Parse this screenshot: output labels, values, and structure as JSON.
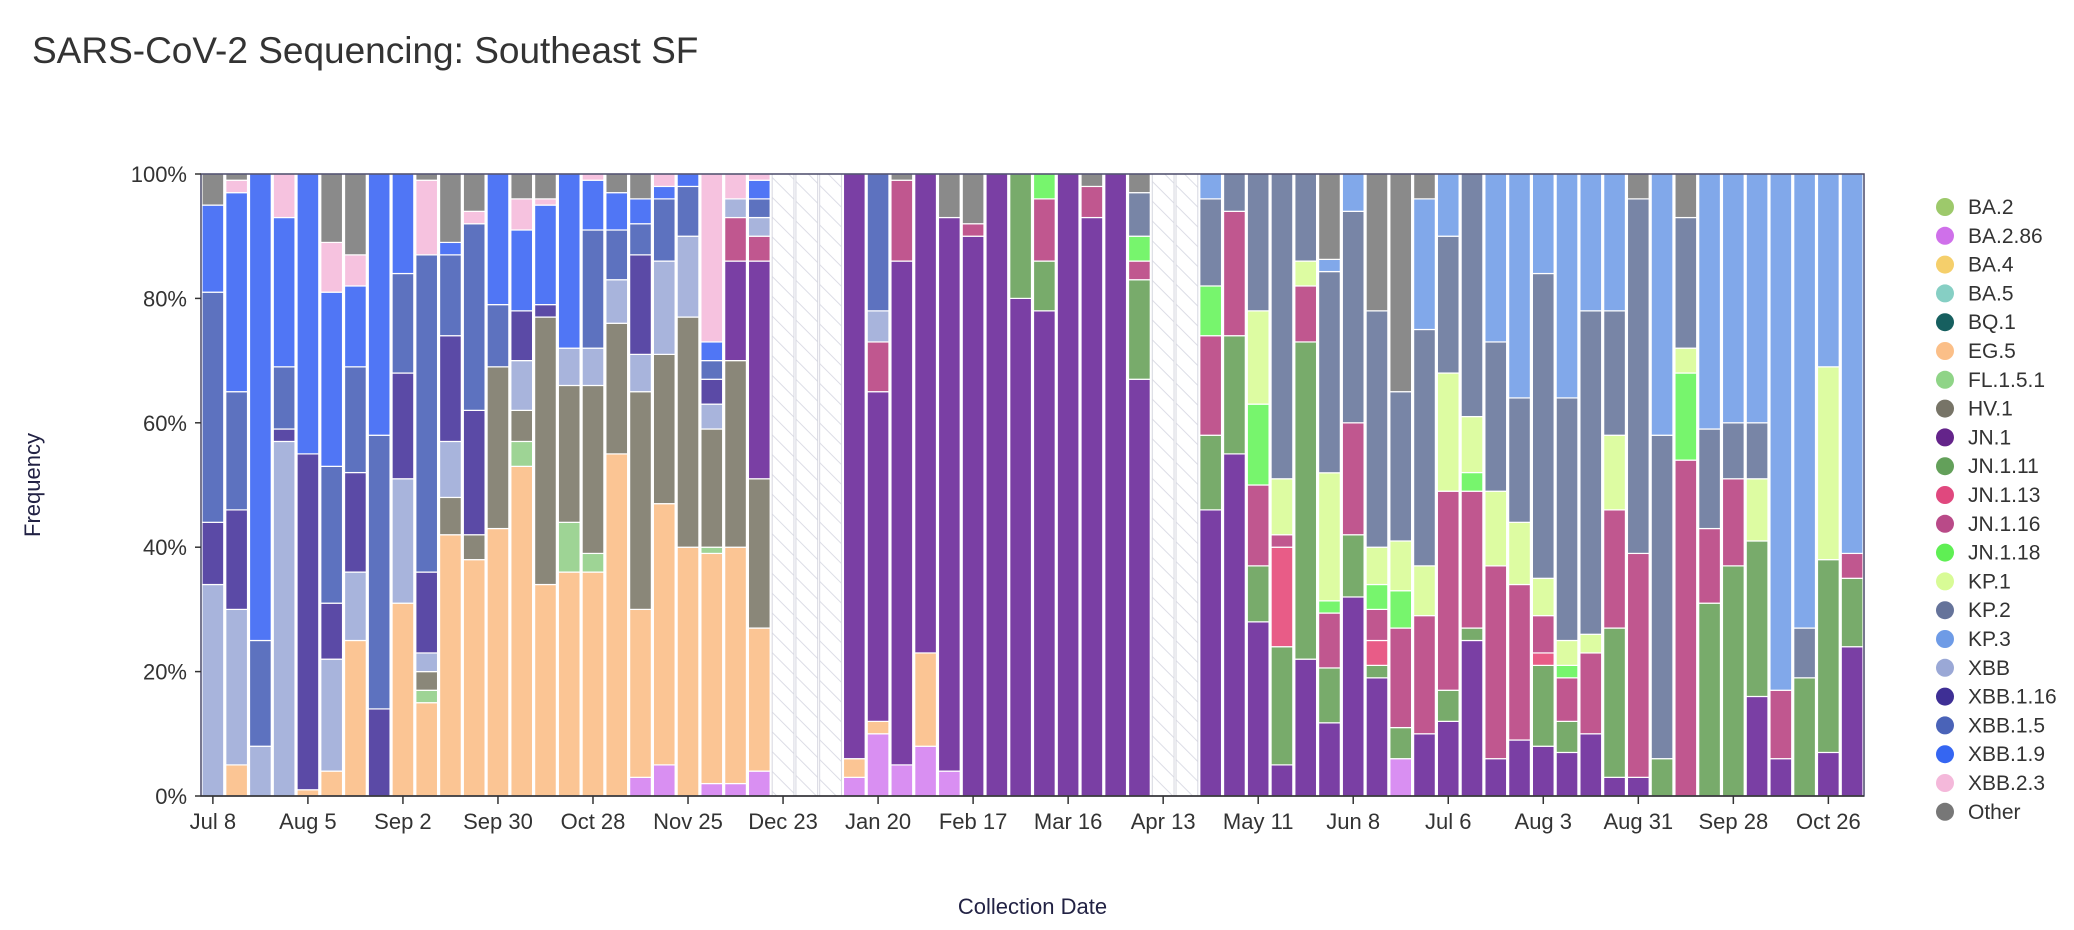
{
  "page": {
    "title": "SARS-CoV-2 Sequencing: Southeast SF"
  },
  "chart_data": {
    "type": "bar",
    "stacked": true,
    "normalized": true,
    "title": "SARS-CoV-2 Sequencing: Southeast SF",
    "xlabel": "Collection Date",
    "ylabel": "Frequency",
    "ylim": [
      0,
      100
    ],
    "yticks": [
      "0%",
      "20%",
      "40%",
      "60%",
      "80%",
      "100%"
    ],
    "xtick_labels": [
      "Jul 8",
      "Aug 5",
      "Sep 2",
      "Sep 30",
      "Oct 28",
      "Nov 25",
      "Dec 23",
      "Jan 20",
      "Feb 17",
      "Mar 16",
      "Apr 13",
      "May 11",
      "Jun 8",
      "Jul 6",
      "Aug 3",
      "Aug 31",
      "Sep 28",
      "Oct 26"
    ],
    "xtick_positions": [
      0,
      4,
      8,
      12,
      16,
      20,
      24,
      28,
      32,
      36,
      40,
      44,
      48,
      52,
      56,
      60,
      64,
      68
    ],
    "num_weeks": 70,
    "no_data_weeks": [
      24,
      25,
      26,
      40,
      41
    ],
    "variants": [
      "BA.2",
      "BA.2.86",
      "BA.4",
      "BA.5",
      "BQ.1",
      "EG.5",
      "FL.1.5.1",
      "HV.1",
      "JN.1",
      "JN.1.11",
      "JN.1.13",
      "JN.1.16",
      "JN.1.18",
      "KP.1",
      "KP.2",
      "KP.3",
      "XBB",
      "XBB.1.16",
      "XBB.1.5",
      "XBB.1.9",
      "XBB.2.3",
      "Other"
    ],
    "colors": {
      "BA.2": "#9dc96b",
      "BA.2.86": "#d98ff2",
      "BA.4": "#f5cf6b",
      "BA.5": "#86cfc4",
      "BQ.1": "#165f5f",
      "EG.5": "#fbc594",
      "FL.1.5.1": "#9ed495",
      "HV.1": "#8a8779",
      "JN.1": "#7a3fa4",
      "JN.1.11": "#78ab6b",
      "JN.1.13": "#e85c87",
      "JN.1.16": "#c0578f",
      "JN.1.18": "#77f56d",
      "KP.1": "#ddfca2",
      "KP.2": "#7885a6",
      "KP.3": "#81a8ea",
      "XBB": "#a8b4dc",
      "XBB.1.16": "#5b4aa6",
      "XBB.1.5": "#5d72bf",
      "XBB.1.9": "#5076f5",
      "XBB.2.3": "#f6c2df",
      "Other": "#8a8a8a"
    },
    "legend_swatch_colors": {
      "BA.2": "#9dc96b",
      "BA.2.86": "#cf70ea",
      "BA.4": "#f5cf6b",
      "BA.5": "#86cfc4",
      "BQ.1": "#165f5f",
      "EG.5": "#fbbf88",
      "FL.1.5.1": "#8fd487",
      "HV.1": "#777467",
      "JN.1": "#64248a",
      "JN.1.11": "#63a05a",
      "JN.1.13": "#e0487e",
      "JN.1.16": "#b94a88",
      "JN.1.18": "#5fef54",
      "KP.1": "#d8fb96",
      "KP.2": "#65739a",
      "KP.3": "#6e9be6",
      "XBB": "#9aa8d6",
      "XBB.1.16": "#3e2f95",
      "XBB.1.5": "#4a63b8",
      "XBB.1.9": "#3566f2",
      "XBB.2.3": "#f4b8da",
      "Other": "#777777"
    },
    "weeks": [
      {
        "XBB": 34,
        "XBB.1.16": 10,
        "XBB.1.5": 37,
        "XBB.1.9": 14,
        "Other": 5
      },
      {
        "EG.5": 5,
        "XBB": 25,
        "XBB.1.16": 16,
        "XBB.1.5": 19,
        "XBB.1.9": 32,
        "XBB.2.3": 2,
        "Other": 1
      },
      {
        "XBB": 8,
        "XBB.1.5": 17,
        "XBB.1.9": 75
      },
      {
        "XBB": 57,
        "XBB.1.16": 2,
        "XBB.1.5": 10,
        "XBB.1.9": 24,
        "XBB.2.3": 7
      },
      {
        "EG.5": 1,
        "XBB.1.16": 54,
        "XBB.1.9": 45
      },
      {
        "EG.5": 4,
        "XBB": 18,
        "XBB.1.16": 9,
        "XBB.1.5": 22,
        "XBB.1.9": 28,
        "XBB.2.3": 8,
        "Other": 11
      },
      {
        "EG.5": 25,
        "XBB": 11,
        "XBB.1.16": 16,
        "XBB.1.5": 17,
        "XBB.1.9": 13,
        "XBB.2.3": 5,
        "Other": 13
      },
      {
        "XBB.1.5": 44,
        "XBB.1.16": 14,
        "XBB.1.9": 42
      },
      {
        "EG.5": 31,
        "XBB": 20,
        "XBB.1.16": 17,
        "XBB.1.5": 16,
        "XBB.1.9": 16
      },
      {
        "EG.5": 15,
        "FL.1.5.1": 2,
        "HV.1": 3,
        "XBB": 3,
        "XBB.1.16": 13,
        "XBB.1.5": 51,
        "XBB.2.3": 12,
        "Other": 1
      },
      {
        "EG.5": 42,
        "HV.1": 6,
        "XBB": 9,
        "XBB.1.16": 17,
        "XBB.1.5": 13,
        "XBB.1.9": 2,
        "Other": 11
      },
      {
        "EG.5": 38,
        "HV.1": 4,
        "XBB.1.16": 20,
        "XBB.1.5": 30,
        "XBB.2.3": 2,
        "Other": 6
      },
      {
        "EG.5": 43,
        "HV.1": 26,
        "XBB.1.5": 10,
        "XBB.1.9": 21
      },
      {
        "EG.5": 53,
        "FL.1.5.1": 4,
        "HV.1": 5,
        "XBB": 8,
        "XBB.1.16": 8,
        "XBB.1.9": 13,
        "XBB.2.3": 5,
        "Other": 4
      },
      {
        "EG.5": 34,
        "HV.1": 43,
        "XBB.1.16": 2,
        "XBB.1.9": 16,
        "XBB.2.3": 1,
        "Other": 4
      },
      {
        "EG.5": 36,
        "FL.1.5.1": 8,
        "HV.1": 22,
        "XBB": 6,
        "XBB.1.9": 28
      },
      {
        "EG.5": 36,
        "FL.1.5.1": 3,
        "HV.1": 27,
        "XBB": 6,
        "XBB.1.5": 19,
        "XBB.1.9": 8,
        "XBB.2.3": 1
      },
      {
        "EG.5": 55,
        "HV.1": 21,
        "XBB": 7,
        "XBB.1.5": 8,
        "XBB.1.9": 6,
        "Other": 3
      },
      {
        "BA.2.86": 3,
        "EG.5": 27,
        "HV.1": 35,
        "XBB.1.16": 16,
        "XBB": 6,
        "XBB.1.5": 5,
        "XBB.1.9": 4,
        "Other": 4
      },
      {
        "BA.2.86": 5,
        "EG.5": 42,
        "HV.1": 24,
        "XBB": 15,
        "XBB.1.5": 10,
        "XBB.1.9": 2,
        "XBB.2.3": 2
      },
      {
        "EG.5": 40,
        "HV.1": 37,
        "XBB": 13,
        "XBB.1.5": 8,
        "XBB.1.9": 2
      },
      {
        "BA.2.86": 2,
        "EG.5": 37,
        "FL.1.5.1": 1,
        "HV.1": 19,
        "XBB.1.16": 4,
        "XBB": 4,
        "XBB.1.5": 3,
        "XBB.1.9": 3,
        "XBB.2.3": 27
      },
      {
        "BA.2.86": 2,
        "EG.5": 38,
        "HV.1": 30,
        "JN.1": 16,
        "JN.1.16": 7,
        "XBB": 3,
        "XBB.2.3": 4
      },
      {
        "BA.2.86": 4,
        "EG.5": 23,
        "HV.1": 24,
        "JN.1": 35,
        "JN.1.16": 4,
        "XBB": 3,
        "XBB.1.5": 3,
        "XBB.1.9": 3,
        "XBB.2.3": 1
      },
      null,
      null,
      null,
      {
        "BA.2.86": 3,
        "EG.5": 3,
        "JN.1": 94
      },
      {
        "BA.2.86": 10,
        "EG.5": 2,
        "JN.1": 53,
        "JN.1.16": 8,
        "XBB": 5,
        "XBB.1.5": 22
      },
      {
        "BA.2.86": 5,
        "JN.1": 81,
        "JN.1.16": 13,
        "Other": 1
      },
      {
        "BA.2.86": 8,
        "EG.5": 15,
        "JN.1": 77
      },
      {
        "BA.2.86": 4,
        "JN.1": 89,
        "Other": 7
      },
      {
        "JN.1": 90,
        "JN.1.16": 2,
        "Other": 8
      },
      {
        "JN.1": 100
      },
      {
        "JN.1": 80,
        "JN.1.11": 20
      },
      {
        "JN.1": 78,
        "JN.1.11": 8,
        "JN.1.16": 10,
        "JN.1.18": 4
      },
      {
        "JN.1": 100
      },
      {
        "JN.1": 93,
        "JN.1.16": 5,
        "Other": 2
      },
      {
        "JN.1": 100
      },
      {
        "JN.1": 67,
        "JN.1.11": 16,
        "JN.1.16": 3,
        "JN.1.18": 4,
        "KP.2": 7,
        "Other": 3
      },
      null,
      null,
      {
        "JN.1": 46,
        "JN.1.11": 12,
        "JN.1.16": 16,
        "JN.1.18": 8,
        "KP.2": 14,
        "KP.3": 4
      },
      {
        "JN.1": 55,
        "JN.1.11": 19,
        "JN.1.16": 20,
        "KP.2": 6
      },
      {
        "JN.1": 28,
        "JN.1.11": 9,
        "JN.1.16": 13,
        "JN.1.18": 13,
        "KP.1": 15,
        "KP.2": 22
      },
      {
        "JN.1": 5,
        "JN.1.11": 19,
        "JN.1.13": 16,
        "JN.1.16": 2,
        "KP.1": 9,
        "KP.2": 49
      },
      {
        "JN.1": 22,
        "JN.1.11": 51,
        "JN.1.16": 9,
        "KP.1": 4,
        "KP.2": 14
      },
      {
        "JN.1": 12,
        "JN.1.11": 9,
        "JN.1.13": 0,
        "JN.1.16": 9,
        "JN.1.18": 2,
        "KP.1": 21,
        "KP.2": 33,
        "KP.3": 2,
        "Other": 14
      },
      {
        "JN.1": 32,
        "JN.1.11": 10,
        "JN.1.16": 18,
        "KP.2": 34,
        "KP.3": 6
      },
      {
        "JN.1": 19,
        "JN.1.11": 2,
        "JN.1.13": 4,
        "JN.1.16": 5,
        "JN.1.18": 4,
        "KP.1": 6,
        "KP.2": 38,
        "Other": 22
      },
      {
        "BA.2.86": 6,
        "JN.1": 0,
        "JN.1.11": 5,
        "JN.1.16": 16,
        "JN.1.18": 6,
        "KP.1": 8,
        "KP.2": 24,
        "KP.3": 0,
        "Other": 35
      },
      {
        "JN.1": 10,
        "JN.1.16": 19,
        "KP.1": 8,
        "KP.2": 38,
        "KP.3": 21,
        "Other": 4
      },
      {
        "JN.1": 12,
        "JN.1.11": 5,
        "JN.1.16": 32,
        "KP.1": 19,
        "KP.2": 22,
        "KP.3": 10
      },
      {
        "JN.1": 25,
        "JN.1.11": 2,
        "JN.1.16": 22,
        "JN.1.18": 3,
        "KP.1": 9,
        "KP.2": 39
      },
      {
        "JN.1": 6,
        "JN.1.16": 31,
        "KP.1": 12,
        "KP.2": 24,
        "KP.3": 27
      },
      {
        "JN.1": 9,
        "JN.1.16": 25,
        "KP.1": 10,
        "KP.2": 20,
        "KP.3": 36
      },
      {
        "JN.1": 8,
        "JN.1.11": 13,
        "JN.1.13": 2,
        "JN.1.16": 6,
        "KP.1": 6,
        "KP.2": 49,
        "KP.3": 16
      },
      {
        "JN.1": 7,
        "JN.1.11": 5,
        "JN.1.16": 7,
        "JN.1.18": 2,
        "KP.1": 4,
        "KP.2": 39,
        "KP.3": 36
      },
      {
        "JN.1": 10,
        "JN.1.16": 13,
        "KP.1": 3,
        "KP.2": 52,
        "KP.3": 22
      },
      {
        "JN.1": 3,
        "JN.1.11": 24,
        "JN.1.16": 19,
        "KP.1": 12,
        "KP.2": 20,
        "KP.3": 22
      },
      {
        "JN.1": 3,
        "JN.1.16": 36,
        "KP.2": 57,
        "KP.3": 0,
        "Other": 4
      },
      {
        "JN.1.11": 6,
        "KP.2": 52,
        "KP.3": 42
      },
      {
        "JN.1.16": 54,
        "JN.1.18": 14,
        "KP.1": 4,
        "KP.2": 21,
        "Other": 7
      },
      {
        "JN.1.11": 31,
        "JN.1.16": 12,
        "KP.2": 16,
        "KP.3": 41
      },
      {
        "JN.1.11": 37,
        "JN.1.16": 14,
        "KP.2": 9,
        "KP.3": 40
      },
      {
        "JN.1": 16,
        "JN.1.11": 25,
        "KP.1": 10,
        "KP.2": 9,
        "KP.3": 40
      },
      {
        "JN.1": 6,
        "JN.1.16": 11,
        "KP.3": 83
      },
      {
        "JN.1.11": 19,
        "KP.2": 8,
        "KP.3": 73
      },
      {
        "JN.1": 7,
        "JN.1.11": 31,
        "KP.1": 31,
        "KP.3": 31
      },
      {
        "JN.1": 24,
        "JN.1.11": 11,
        "JN.1.16": 4,
        "KP.3": 61
      }
    ]
  }
}
